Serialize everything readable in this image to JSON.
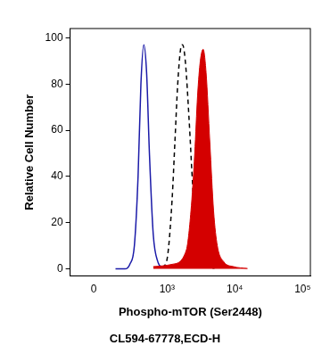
{
  "chart_data": {
    "type": "line",
    "x_label": "Phospho-mTOR (Ser2448)",
    "caption": "CL594-67778,ECD-H",
    "y_label": "Relative Cell Number",
    "xlim": [
      -150,
      130000
    ],
    "xticks": [
      {
        "value": 0,
        "label": "0"
      },
      {
        "value": 1000,
        "label": "10³"
      },
      {
        "value": 10000,
        "label": "10⁴"
      },
      {
        "value": 100000,
        "label": "10⁵"
      }
    ],
    "ylim": [
      -3,
      104
    ],
    "yticks": [
      0,
      20,
      40,
      60,
      80,
      100
    ],
    "grid": false,
    "series": [
      {
        "type": "area",
        "color": "#d40000",
        "line_style": "solid",
        "x": [
          619,
          1189,
          1925,
          2261,
          2571,
          2832,
          3108,
          3427,
          3780,
          4290,
          4880,
          5541,
          6935,
          9560,
          15420
        ],
        "values": [
          1,
          2,
          8,
          25,
          50,
          75,
          90,
          95,
          85,
          55,
          25,
          10,
          3,
          1,
          0.2
        ]
      },
      {
        "type": "line",
        "color": "#000000",
        "line_style": "dashed",
        "x": [
          860,
          1011,
          1189,
          1309,
          1441,
          1588,
          1695,
          1865,
          2120,
          2409,
          2739,
          3108,
          3780,
          5040
        ],
        "values": [
          0.5,
          5,
          30,
          55,
          80,
          95,
          97,
          90,
          65,
          35,
          12,
          4,
          1,
          0.3
        ]
      },
      {
        "type": "line",
        "color": "#1a1aa8",
        "line_style": "solid",
        "x": [
          135,
          212,
          260,
          311,
          358,
          398,
          442,
          489,
          541,
          619,
          729,
          860
        ],
        "values": [
          0,
          0,
          2,
          10,
          40,
          80,
          97,
          85,
          50,
          15,
          3,
          0.5
        ]
      }
    ]
  }
}
